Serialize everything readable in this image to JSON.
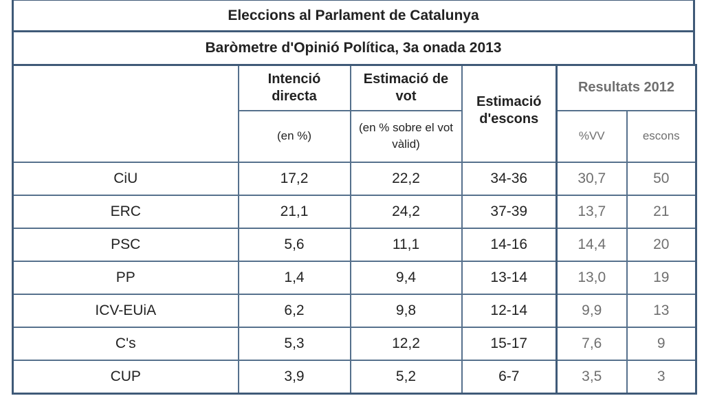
{
  "chart_data": {
    "type": "table",
    "title": "Eleccions al Parlament de Catalunya",
    "subtitle": "Baròmetre d'Opinió Política, 3a onada 2013",
    "headers": {
      "intencio": "Intenció directa",
      "intencio_unit": "(en %)",
      "estimacio_vot": "Estimació de vot",
      "estimacio_vot_unit": "(en % sobre el vot vàlid)",
      "escons": "Estimació d'escons",
      "resultats": "Resultats 2012",
      "vv": "%VV",
      "escons2012": "escons"
    },
    "rows": [
      {
        "party": "CiU",
        "intencio": "17,2",
        "vot": "22,2",
        "escons": "34-36",
        "vv": "30,7",
        "escons2012": "50"
      },
      {
        "party": "ERC",
        "intencio": "21,1",
        "vot": "24,2",
        "escons": "37-39",
        "vv": "13,7",
        "escons2012": "21"
      },
      {
        "party": "PSC",
        "intencio": "5,6",
        "vot": "11,1",
        "escons": "14-16",
        "vv": "14,4",
        "escons2012": "20"
      },
      {
        "party": "PP",
        "intencio": "1,4",
        "vot": "9,4",
        "escons": "13-14",
        "vv": "13,0",
        "escons2012": "19"
      },
      {
        "party": "ICV-EUiA",
        "intencio": "6,2",
        "vot": "9,8",
        "escons": "12-14",
        "vv": "9,9",
        "escons2012": "13"
      },
      {
        "party": "C's",
        "intencio": "5,3",
        "vot": "12,2",
        "escons": "15-17",
        "vv": "7,6",
        "escons2012": "9"
      },
      {
        "party": "CUP",
        "intencio": "3,9",
        "vot": "5,2",
        "escons": "6-7",
        "vv": "3,5",
        "escons2012": "3"
      }
    ],
    "colors": {
      "border": "#3f5a78",
      "results_text": "#6f6f6f"
    }
  }
}
